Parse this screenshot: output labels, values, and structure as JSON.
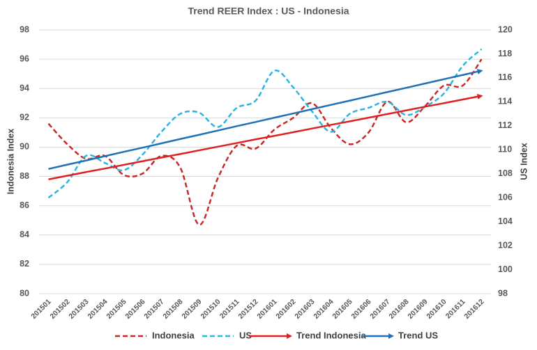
{
  "chart_data": {
    "type": "line",
    "title": "Trend REER Index : US - Indonesia",
    "y_label": "Indonesia Index",
    "y2_label": "US Index",
    "categories": [
      "201501",
      "201502",
      "201503",
      "201504",
      "201505",
      "201506",
      "201507",
      "201508",
      "201509",
      "201510",
      "201511",
      "201512",
      "201601",
      "201602",
      "201603",
      "201604",
      "201605",
      "201606",
      "201607",
      "201608",
      "201609",
      "201610",
      "201611",
      "201612"
    ],
    "ylim": [
      80,
      98
    ],
    "yticks": [
      80,
      82,
      84,
      86,
      88,
      90,
      92,
      94,
      96,
      98
    ],
    "y2lim": [
      98,
      120
    ],
    "y2ticks": [
      98,
      100,
      102,
      104,
      106,
      108,
      110,
      112,
      114,
      116,
      118,
      120
    ],
    "grid": true,
    "legend": "bottom",
    "series": [
      {
        "name": "Indonesia",
        "color": "#c82828",
        "style": "dashed",
        "axis": "y",
        "values": [
          91.6,
          90.2,
          89.2,
          89.4,
          88.1,
          88.2,
          89.4,
          88.6,
          84.7,
          87.9,
          90.1,
          89.9,
          91.2,
          92.0,
          93.0,
          91.3,
          90.2,
          91.0,
          93.1,
          91.7,
          92.8,
          94.2,
          94.2,
          96.0
        ]
      },
      {
        "name": "US",
        "color": "#2cb5e0",
        "style": "dashed",
        "axis": "y2",
        "values": [
          106.0,
          107.3,
          109.5,
          108.9,
          108.3,
          109.6,
          111.5,
          113.0,
          113.1,
          111.9,
          113.5,
          114.1,
          116.6,
          115.2,
          113.2,
          111.5,
          113.0,
          113.5,
          114.0,
          112.9,
          113.6,
          114.7,
          117.0,
          118.4
        ]
      },
      {
        "name": "Trend Indonesia",
        "color": "#e02020",
        "style": "arrow",
        "axis": "y",
        "values": [
          87.8,
          88.05,
          88.3,
          88.54,
          88.79,
          89.04,
          89.29,
          89.53,
          89.78,
          90.03,
          90.28,
          90.53,
          90.77,
          91.02,
          91.27,
          91.52,
          91.76,
          92.01,
          92.26,
          92.51,
          92.76,
          93.0,
          93.25,
          93.5
        ]
      },
      {
        "name": "Trend US",
        "color": "#1f70b4",
        "style": "arrow",
        "axis": "y2",
        "values": [
          108.4,
          108.76,
          109.11,
          109.47,
          109.83,
          110.18,
          110.54,
          110.9,
          111.25,
          111.61,
          111.97,
          112.32,
          112.68,
          113.03,
          113.39,
          113.75,
          114.1,
          114.46,
          114.82,
          115.17,
          115.53,
          115.89,
          116.24,
          116.6
        ]
      }
    ]
  }
}
